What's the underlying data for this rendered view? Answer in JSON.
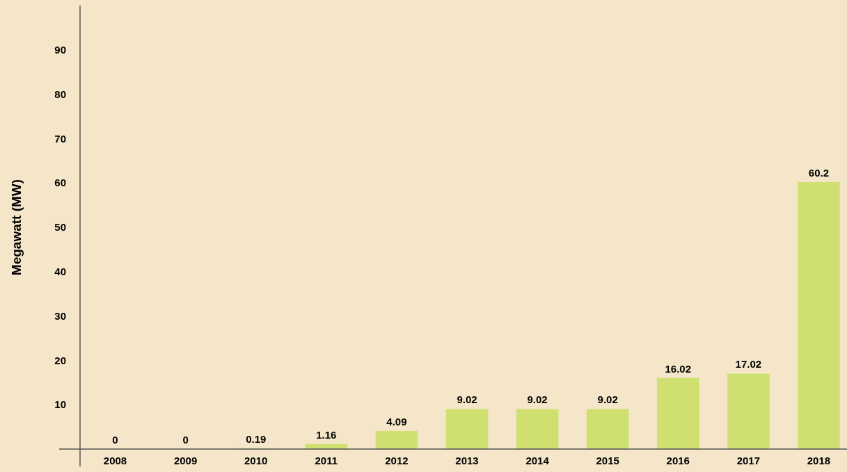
{
  "chart_data": {
    "type": "bar",
    "ylabel": "Megawatt (MW)",
    "categories": [
      "2008",
      "2009",
      "2010",
      "2011",
      "2012",
      "2013",
      "2014",
      "2015",
      "2016",
      "2017",
      "2018"
    ],
    "values": [
      0,
      0,
      0.19,
      1.16,
      4.09,
      9.02,
      9.02,
      9.02,
      16.02,
      17.02,
      60.2
    ],
    "color": "#cfe070",
    "ylim": [
      0,
      100
    ],
    "yticks": [
      10,
      20,
      30,
      40,
      50,
      60,
      70,
      80,
      90
    ],
    "grid": false,
    "data_labels": true
  }
}
